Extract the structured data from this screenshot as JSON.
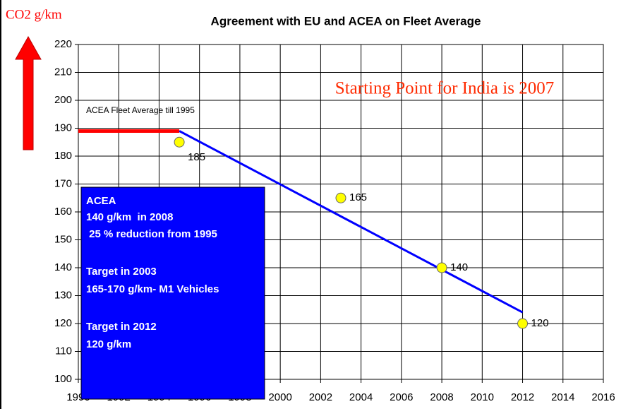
{
  "chart_data": {
    "type": "scatter",
    "title": "Agreement with EU and ACEA on Fleet Average",
    "y_label": "CO2 g/km",
    "x": [
      1995,
      2003,
      2008,
      2012
    ],
    "values": [
      185,
      165,
      140,
      120
    ],
    "color": "#ffff00",
    "xlim": [
      1990,
      2016
    ],
    "xticks": [
      1990,
      1992,
      1994,
      1996,
      1998,
      2000,
      2002,
      2004,
      2006,
      2008,
      2010,
      2012,
      2014,
      2016
    ],
    "ylim": [
      100,
      220
    ],
    "yticks": [
      100,
      110,
      120,
      130,
      140,
      150,
      160,
      170,
      180,
      190,
      200,
      210,
      220
    ],
    "grid": true,
    "lines": [
      {
        "x": [
          1990,
          1995
        ],
        "values": [
          189,
          189
        ],
        "color": "#ff0000"
      },
      {
        "x": [
          1995,
          2012
        ],
        "values": [
          189,
          124
        ],
        "color": "#0000ff"
      }
    ],
    "annotations": [
      "ACEA Fleet Average till 1995",
      "Starting Point for India is 2007"
    ],
    "box_lines": [
      "ACEA",
      "140 g/km  in 2008",
      " 25 % reduction from 1995",
      "Target in 2003",
      "165-170 g/km- M1 Vehicles",
      "Target in 2012",
      "120 g/km"
    ],
    "box_color": "#0000ff"
  }
}
